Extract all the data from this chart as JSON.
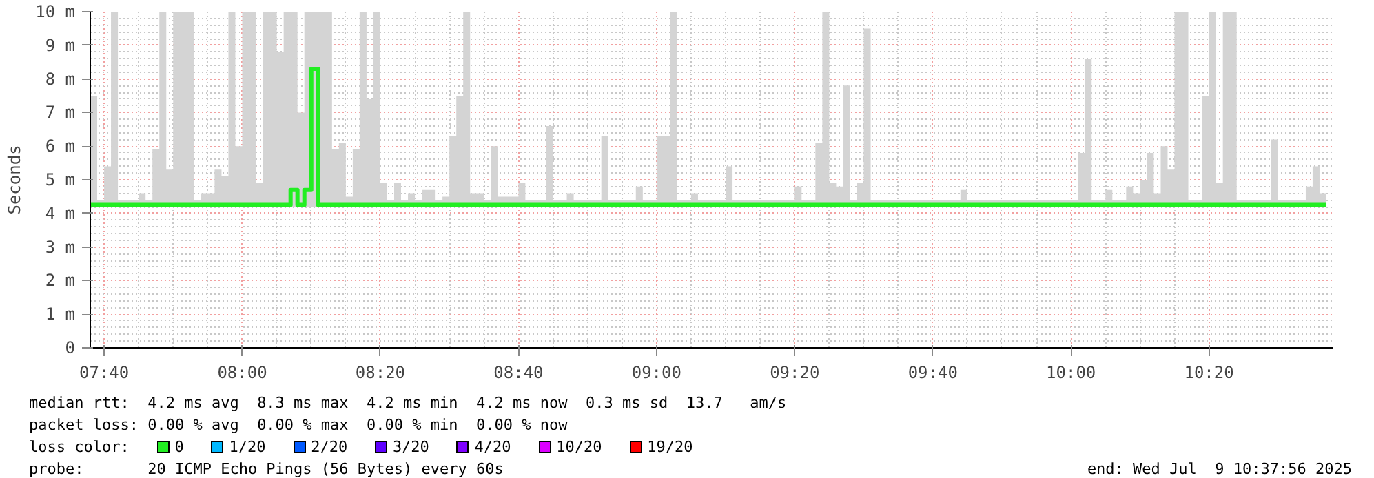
{
  "chart_data": {
    "type": "step",
    "ylabel": "Seconds",
    "xlim": [
      7.6333,
      10.6333
    ],
    "ylim": [
      0,
      10
    ],
    "xticks": [
      {
        "value": 7.6667,
        "label": "07:40"
      },
      {
        "value": 8,
        "label": "08:00"
      },
      {
        "value": 8.3333,
        "label": "08:20"
      },
      {
        "value": 8.6667,
        "label": "08:40"
      },
      {
        "value": 9,
        "label": "09:00"
      },
      {
        "value": 9.3333,
        "label": "09:20"
      },
      {
        "value": 9.6667,
        "label": "09:40"
      },
      {
        "value": 10,
        "label": "10:00"
      },
      {
        "value": 10.3333,
        "label": "10:20"
      }
    ],
    "yticks": [
      0,
      {
        "value": 1,
        "label": "1 m"
      },
      {
        "value": 2,
        "label": "2 m"
      },
      {
        "value": 3,
        "label": "3 m"
      },
      {
        "value": 4,
        "label": "4 m"
      },
      {
        "value": 5,
        "label": "5 m"
      },
      {
        "value": 6,
        "label": "6 m"
      },
      {
        "value": 7,
        "label": "7 m"
      },
      {
        "value": 8,
        "label": "8 m"
      },
      {
        "value": 9,
        "label": "9 m"
      },
      {
        "value": 10,
        "label": "10 m"
      }
    ],
    "grid": true,
    "legend": "bottom",
    "legend_title": "loss color:",
    "line_style": "solid",
    "marker": "none",
    "series": [
      {
        "name": "0",
        "color": "#22ee22",
        "x": [
          7.6333,
          7.65,
          7.6667,
          7.6833,
          7.7,
          7.75,
          7.7667,
          7.7833,
          7.8,
          7.8167,
          7.8333,
          7.8833,
          7.9,
          7.9333,
          7.95,
          7.9667,
          7.9833,
          8,
          8.0333,
          8.05,
          8.0833,
          8.1,
          8.1167,
          8.1333,
          8.15,
          8.1667,
          8.1833,
          8.2167,
          8.2333,
          8.25,
          8.2667,
          8.2833,
          8.3,
          8.3167,
          8.3333,
          8.35,
          8.3667,
          8.3833,
          8.4,
          8.4167,
          8.4333,
          8.4667,
          8.4833,
          8.5,
          8.5167,
          8.5333,
          8.55,
          8.5833,
          8.6,
          8.6167,
          8.6667,
          8.6833,
          8.7333,
          8.75,
          8.7833,
          8.8,
          8.8667,
          8.8833,
          8.95,
          8.9667,
          9,
          9.0333,
          9.05,
          9.0833,
          9.1,
          9.1667,
          9.1833,
          9.3333,
          9.35,
          9.3833,
          9.4,
          9.4167,
          9.4333,
          9.45,
          9.4667,
          9.4833,
          9.5,
          9.5167,
          9.7333,
          9.75,
          10.0167,
          10.0333,
          10.05,
          10.0833,
          10.1,
          10.1333,
          10.15,
          10.1667,
          10.1833,
          10.2,
          10.2167,
          10.2333,
          10.25,
          10.2833,
          10.3167,
          10.3333,
          10.35,
          10.3667,
          10.4,
          10.4833,
          10.5,
          10.5667,
          10.5833,
          10.6,
          10.6167
        ],
        "values": [
          4.25,
          4.25,
          4.25,
          4.25,
          4.25,
          4.25,
          4.25,
          4.25,
          4.25,
          4.25,
          4.25,
          4.25,
          4.25,
          4.25,
          4.25,
          4.25,
          4.25,
          4.25,
          4.25,
          4.25,
          4.25,
          4.25,
          4.7,
          4.25,
          4.7,
          8.3,
          4.25,
          4.25,
          4.25,
          4.25,
          4.25,
          4.25,
          4.25,
          4.25,
          4.25,
          4.25,
          4.25,
          4.25,
          4.25,
          4.25,
          4.25,
          4.25,
          4.25,
          4.25,
          4.25,
          4.25,
          4.25,
          4.25,
          4.25,
          4.25,
          4.25,
          4.25,
          4.25,
          4.25,
          4.25,
          4.25,
          4.25,
          4.25,
          4.25,
          4.25,
          4.25,
          4.25,
          4.25,
          4.25,
          4.25,
          4.25,
          4.25,
          4.25,
          4.25,
          4.25,
          4.25,
          4.25,
          4.25,
          4.25,
          4.25,
          4.25,
          4.25,
          4.25,
          4.25,
          4.25,
          4.25,
          4.25,
          4.25,
          4.25,
          4.25,
          4.25,
          4.25,
          4.25,
          4.25,
          4.25,
          4.25,
          4.25,
          4.25,
          4.25,
          4.25,
          4.25,
          4.25,
          4.25,
          4.25,
          4.25,
          4.25,
          4.25,
          4.25,
          4.25,
          4.25
        ],
        "lower": [
          4.2,
          4.2,
          4.2,
          4.2,
          4.2,
          4.2,
          4.2,
          4.2,
          4.2,
          4.2,
          4.2,
          4.2,
          4.2,
          4.2,
          4.2,
          4.2,
          4.2,
          4.2,
          4.2,
          4.2,
          4.2,
          4.2,
          4.2,
          4.2,
          4.2,
          4.2,
          4.2,
          4.2,
          4.2,
          4.2,
          4.2,
          4.2,
          4.2,
          4.2,
          4.2,
          4.2,
          4.2,
          4.2,
          4.2,
          4.2,
          4.2,
          4.2,
          4.2,
          4.2,
          4.2,
          4.2,
          4.2,
          4.2,
          4.2,
          4.2,
          4.2,
          4.2,
          4.2,
          4.2,
          4.2,
          4.2,
          4.2,
          4.2,
          4.2,
          4.2,
          4.2,
          4.2,
          4.2,
          4.2,
          4.2,
          4.2,
          4.2,
          4.2,
          4.2,
          4.2,
          4.2,
          4.2,
          4.2,
          4.2,
          4.2,
          4.2,
          4.2,
          4.2,
          4.2,
          4.2,
          4.2,
          4.2,
          4.2,
          4.2,
          4.2,
          4.2,
          4.2,
          4.2,
          4.2,
          4.2,
          4.2,
          4.2,
          4.2,
          4.2,
          4.2,
          4.2,
          4.2,
          4.2,
          4.2,
          4.2,
          4.2,
          4.2,
          4.2,
          4.2,
          4.2
        ],
        "upper": [
          7.5,
          4.4,
          5.4,
          10,
          4.4,
          4.6,
          4.4,
          5.9,
          10,
          5.3,
          10,
          4.4,
          4.6,
          5.3,
          5.1,
          10,
          6,
          10,
          4.9,
          10,
          8.8,
          10,
          10,
          7,
          10,
          10,
          10,
          5.9,
          6.1,
          4.5,
          5.9,
          10,
          7.4,
          10,
          4.9,
          4.4,
          4.9,
          4.4,
          4.6,
          4.4,
          4.7,
          4.4,
          4.5,
          6.3,
          7.5,
          10,
          4.6,
          4.4,
          6,
          4.5,
          4.9,
          4.4,
          6.6,
          4.4,
          4.6,
          4.4,
          6.3,
          4.4,
          4.8,
          4.4,
          6.3,
          10,
          4.4,
          4.6,
          4.4,
          5.4,
          4.4,
          4.8,
          4.4,
          6.1,
          10,
          4.9,
          4.8,
          7.8,
          4.4,
          4.9,
          9.5,
          4.4,
          4.7,
          4.4,
          5.8,
          8.6,
          4.4,
          4.7,
          4.4,
          4.8,
          4.6,
          5,
          5.8,
          4.6,
          6,
          5.3,
          10,
          4.4,
          7.5,
          10,
          4.9,
          10,
          4.4,
          6.2,
          4.4,
          4.8,
          5.4,
          4.6,
          4.6
        ]
      },
      {
        "name": "1/20",
        "color": "#00b8ff"
      },
      {
        "name": "2/20",
        "color": "#0059ff"
      },
      {
        "name": "3/20",
        "color": "#5e00ff"
      },
      {
        "name": "4/20",
        "color": "#7e00ff"
      },
      {
        "name": "10/20",
        "color": "#dd00ff"
      },
      {
        "name": "19/20",
        "color": "#ff0000"
      }
    ],
    "annotations": [
      "median rtt:  4.2 ms avg  8.3 ms max  4.2 ms min  4.2 ms now  0.3 ms sd  13.7   am/s",
      "packet loss: 0.00 % avg  0.00 % max  0.00 % min  0.00 % now",
      "probe:       20 ICMP Echo Pings (56 Bytes) every 60s",
      "end: Wed Jul  9 10:37:56 2025"
    ]
  }
}
